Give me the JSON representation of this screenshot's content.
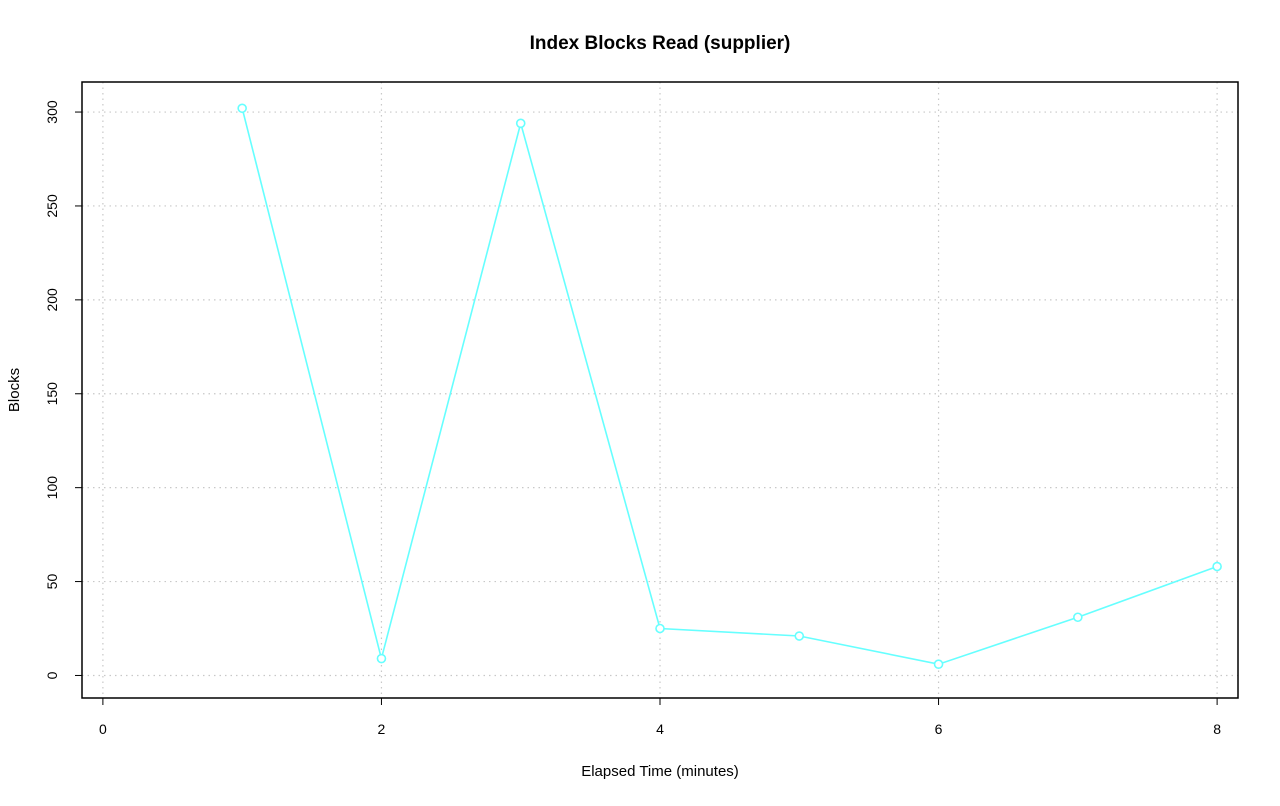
{
  "chart_data": {
    "type": "line",
    "title": "Index Blocks Read (supplier)",
    "xlabel": "Elapsed Time (minutes)",
    "ylabel": "Blocks",
    "xlim": [
      -0.15,
      8.15
    ],
    "ylim": [
      -12,
      316
    ],
    "x_ticks": [
      0,
      2,
      4,
      6,
      8
    ],
    "y_ticks": [
      0,
      50,
      100,
      150,
      200,
      250,
      300
    ],
    "x_grid": [
      0,
      2,
      4,
      6,
      8
    ],
    "y_grid": [
      0,
      50,
      100,
      150,
      200,
      250,
      300
    ],
    "grid": true,
    "legend": "none",
    "series": [
      {
        "color": "#66ffff",
        "x": [
          1,
          2,
          3,
          4,
          5,
          6,
          7,
          8
        ],
        "y": [
          302,
          9,
          294,
          25,
          21,
          6,
          31,
          58
        ]
      }
    ]
  }
}
